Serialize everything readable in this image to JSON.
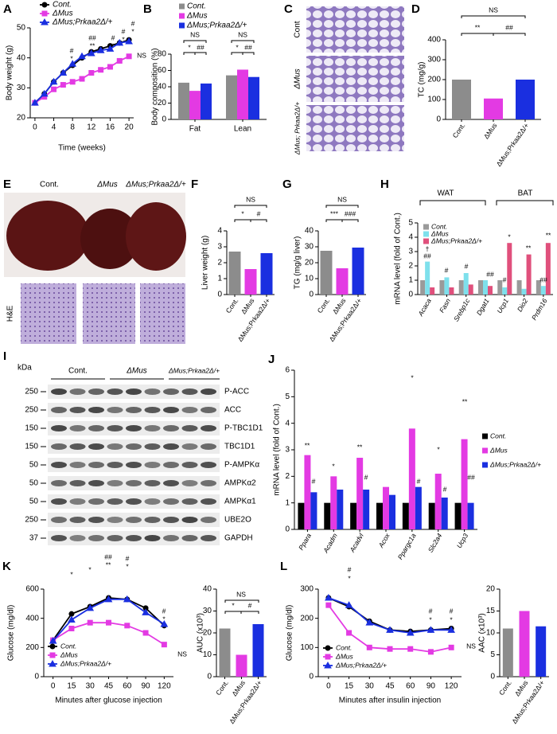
{
  "chart_data": [
    {
      "type": "line",
      "panel": "A",
      "ylabel": "Body weight (g)",
      "xlabel": "Time (weeks)",
      "x": [
        0,
        2,
        4,
        6,
        8,
        10,
        12,
        14,
        16,
        18,
        20
      ],
      "xlim": [
        -1,
        21
      ],
      "xticks": [
        0,
        4,
        8,
        12,
        16,
        20
      ],
      "ylim": [
        20,
        50
      ],
      "yticks": [
        20,
        30,
        40,
        50
      ],
      "series": [
        {
          "name": "Cont.",
          "color": "#000000",
          "marker": "circle",
          "values": [
            25,
            28,
            32,
            35,
            37.5,
            40,
            42,
            43,
            44,
            45,
            46
          ]
        },
        {
          "name": "ΔMus",
          "color": "#e33ae3",
          "marker": "square",
          "values": [
            25,
            27,
            29.5,
            31,
            32,
            33,
            35,
            36,
            37,
            39,
            40.5
          ]
        },
        {
          "name": "ΔMus;Prkaa2Δ/+",
          "color": "#1a2fe0",
          "marker": "triangle",
          "values": [
            25,
            28,
            32,
            35,
            38,
            40.5,
            41.5,
            42.5,
            43,
            45,
            45.5
          ]
        }
      ],
      "annotations": [
        "#",
        "*",
        "##",
        "**",
        "#",
        "*",
        "#",
        "*",
        "#",
        "*",
        "NS"
      ]
    },
    {
      "type": "grouped-bar",
      "panel": "B",
      "ylabel": "Body composition (%)",
      "categories": [
        "Fat",
        "Lean"
      ],
      "ylim": [
        0,
        80
      ],
      "yticks": [
        0,
        20,
        40,
        60,
        80
      ],
      "series": [
        {
          "name": "Cont.",
          "color": "#8c8c8c",
          "values": [
            45,
            54
          ]
        },
        {
          "name": "ΔMus",
          "color": "#e33ae3",
          "values": [
            35,
            61
          ]
        },
        {
          "name": "ΔMus;Prkaa2Δ/+",
          "color": "#1a2fe0",
          "values": [
            44,
            52
          ]
        }
      ],
      "annotations": [
        "NS",
        "*",
        "##",
        "NS",
        "*",
        "##"
      ]
    },
    {
      "type": "bar",
      "panel": "D",
      "ylabel": "TC (mg/g)",
      "categories": [
        "Cont.",
        "ΔMus",
        "ΔMus;Prkaa2Δ/+"
      ],
      "values": [
        200,
        105,
        200
      ],
      "colors": [
        "#8c8c8c",
        "#e33ae3",
        "#1a2fe0"
      ],
      "ylim": [
        0,
        400
      ],
      "yticks": [
        0,
        100,
        200,
        300,
        400
      ],
      "annotations": [
        "NS",
        "**",
        "##"
      ]
    },
    {
      "type": "bar",
      "panel": "F",
      "ylabel": "Liver weight (g)",
      "categories": [
        "Cont.",
        "ΔMus",
        "ΔMus;Prkaa2Δ/+"
      ],
      "values": [
        2.7,
        1.6,
        2.6
      ],
      "colors": [
        "#8c8c8c",
        "#e33ae3",
        "#1a2fe0"
      ],
      "ylim": [
        0,
        4
      ],
      "yticks": [
        0,
        1,
        2,
        3,
        4
      ],
      "annotations": [
        "NS",
        "*",
        "#"
      ]
    },
    {
      "type": "bar",
      "panel": "G",
      "ylabel": "TG (mg/g liver)",
      "categories": [
        "Cont.",
        "ΔMus",
        "ΔMus;Prkaa2Δ/+"
      ],
      "values": [
        27.5,
        16.5,
        29.5
      ],
      "colors": [
        "#8c8c8c",
        "#e33ae3",
        "#1a2fe0"
      ],
      "ylim": [
        0,
        40
      ],
      "yticks": [
        0,
        10,
        20,
        30,
        40
      ],
      "annotations": [
        "NS",
        "***",
        "###"
      ]
    },
    {
      "type": "grouped-bar",
      "panel": "H",
      "ylabel": "mRNA level (fold of Cont.)",
      "groups": [
        "WAT",
        "BAT"
      ],
      "categories": [
        "Acaca",
        "Fasn",
        "Srebp1c",
        "Dgat1",
        "Ucp1",
        "Dio2",
        "Prdm16"
      ],
      "ylim": [
        0,
        5
      ],
      "yticks": [
        0,
        1,
        2,
        3,
        4,
        5
      ],
      "series": [
        {
          "name": "Cont.",
          "color": "#9a9a9a",
          "values": [
            1,
            1,
            1,
            1,
            1,
            1,
            1
          ]
        },
        {
          "name": "ΔMus",
          "color": "#7ee0ec",
          "values": [
            2.3,
            1.2,
            1.5,
            1.0,
            0.5,
            0.4,
            0.6
          ]
        },
        {
          "name": "ΔMus;Prkaa2Δ/+",
          "color": "#e0507c",
          "values": [
            0.5,
            0.5,
            0.7,
            0.6,
            3.6,
            2.8,
            3.6
          ]
        }
      ],
      "annotations": [
        "†",
        "##",
        "#",
        "#",
        "##",
        "*",
        "#",
        "**",
        "**",
        "##"
      ]
    },
    {
      "type": "grouped-bar",
      "panel": "J",
      "ylabel": "mRNA level (fold of Cont.)",
      "categories": [
        "Ppara",
        "Acadm",
        "Acadvl",
        "Acox",
        "Ppargc1a",
        "Slc2a4",
        "Ucp3"
      ],
      "ylim": [
        0,
        6
      ],
      "yticks": [
        0,
        1,
        2,
        3,
        4,
        5,
        6
      ],
      "series": [
        {
          "name": "Cont.",
          "color": "#000000",
          "values": [
            1,
            1,
            1,
            1,
            1,
            1,
            1
          ]
        },
        {
          "name": "ΔMus",
          "color": "#e33ae3",
          "values": [
            2.8,
            2.0,
            2.7,
            1.6,
            3.8,
            2.1,
            3.4
          ]
        },
        {
          "name": "ΔMus;Prkaa2Δ/+",
          "color": "#1a2fe0",
          "values": [
            1.4,
            1.5,
            1.5,
            1.3,
            1.6,
            1.2,
            1.0
          ]
        }
      ],
      "annotations": [
        "**",
        "#",
        "*",
        "**",
        "#",
        "*",
        "#",
        "*",
        "#",
        "**",
        "##"
      ]
    },
    {
      "type": "line",
      "panel": "K",
      "ylabel": "Glucose (mg/dl)",
      "xlabel": "Minutes after glucose injection",
      "categories": [
        "0",
        "15",
        "30",
        "45",
        "60",
        "90",
        "120"
      ],
      "ylim": [
        0,
        600
      ],
      "yticks": [
        0,
        200,
        400,
        600
      ],
      "series": [
        {
          "name": "Cont.",
          "color": "#000000",
          "marker": "circle",
          "values": [
            250,
            430,
            480,
            540,
            530,
            470,
            350
          ]
        },
        {
          "name": "ΔMus",
          "color": "#e33ae3",
          "marker": "square",
          "values": [
            250,
            330,
            370,
            370,
            350,
            300,
            220
          ]
        },
        {
          "name": "ΔMus;Prkaa2Δ/+",
          "color": "#1a2fe0",
          "marker": "triangle",
          "values": [
            245,
            390,
            470,
            530,
            530,
            440,
            360
          ]
        }
      ],
      "annotations": [
        "*",
        "*",
        "##",
        "**",
        "#",
        "*",
        "#",
        "*",
        "NS"
      ]
    },
    {
      "type": "bar",
      "ylabel": "AUC (x10³)",
      "categories": [
        "Cont.",
        "ΔMus",
        "ΔMus;Prkaa2Δ/+"
      ],
      "values": [
        22,
        10,
        24
      ],
      "colors": [
        "#8c8c8c",
        "#e33ae3",
        "#1a2fe0"
      ],
      "ylim": [
        0,
        40
      ],
      "yticks": [
        0,
        10,
        20,
        30,
        40
      ],
      "annotations": [
        "NS",
        "*",
        "#"
      ]
    },
    {
      "type": "line",
      "panel": "L",
      "ylabel": "Glucose (mg/dl)",
      "xlabel": "Minutes after insulin injection",
      "categories": [
        "0",
        "15",
        "30",
        "45",
        "60",
        "90",
        "120"
      ],
      "ylim": [
        0,
        300
      ],
      "yticks": [
        0,
        100,
        200,
        300
      ],
      "series": [
        {
          "name": "Cont.",
          "color": "#000000",
          "marker": "circle",
          "values": [
            270,
            240,
            190,
            160,
            155,
            160,
            165
          ]
        },
        {
          "name": "ΔMus",
          "color": "#e33ae3",
          "marker": "square",
          "values": [
            245,
            150,
            100,
            95,
            95,
            85,
            100
          ]
        },
        {
          "name": "ΔMus;Prkaa2Δ/+",
          "color": "#1a2fe0",
          "marker": "triangle",
          "values": [
            270,
            245,
            185,
            160,
            150,
            160,
            160
          ]
        }
      ],
      "annotations": [
        "#",
        "*",
        "#",
        "*",
        "#",
        "*",
        "NS"
      ]
    },
    {
      "type": "bar",
      "ylabel": "AAC (x10³)",
      "categories": [
        "Cont.",
        "ΔMus",
        "ΔMus;Prkaa2Δ/+"
      ],
      "values": [
        11,
        15,
        11.5
      ],
      "colors": [
        "#8c8c8c",
        "#e33ae3",
        "#1a2fe0"
      ],
      "ylim": [
        0,
        20
      ],
      "yticks": [
        0,
        5,
        10,
        15,
        20
      ]
    }
  ],
  "figure": {
    "C": {
      "panel": "C",
      "labels": [
        "Cont",
        "ΔMus",
        "ΔMus; Prkaa2Δ/+"
      ]
    },
    "E": {
      "panel": "E",
      "labels": [
        "Cont.",
        "ΔMus",
        "ΔMus;Prkaa2Δ/+"
      ],
      "stain": "H&E"
    },
    "I": {
      "panel": "I",
      "unit": "kDa",
      "groups": [
        "Cont.",
        "ΔMus",
        "ΔMus;Prkaa2Δ/+"
      ],
      "markers": [
        250,
        250,
        150,
        150,
        50,
        50,
        50,
        250,
        37
      ],
      "proteins": [
        "P-ACC",
        "ACC",
        "P-TBC1D1",
        "TBC1D1",
        "P-AMPKα",
        "AMPKα2",
        "AMPKα1",
        "UBE2O",
        "GAPDH"
      ]
    }
  }
}
